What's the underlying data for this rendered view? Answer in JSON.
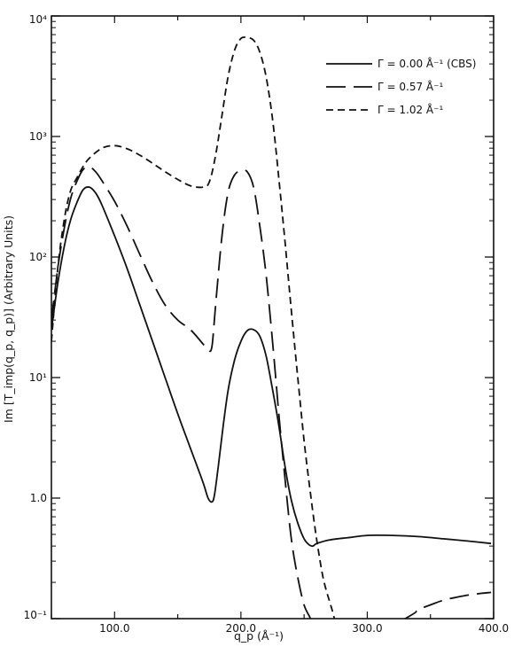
{
  "chart_data": {
    "type": "line",
    "xlabel": "q_p (Å⁻¹)",
    "ylabel": "Im [T_imp(q_p, q_p)]  (Arbitrary Units)",
    "xlim": [
      50,
      400
    ],
    "ylim": [
      0.1,
      10000
    ],
    "y_scale": "log",
    "grid": false,
    "legend_position": "top-right",
    "x_ticks": [
      100,
      200,
      300,
      400
    ],
    "x_tick_labels": [
      "100.0",
      "200.0",
      "300.0",
      "400.0"
    ],
    "y_ticks": [
      0.1,
      1,
      10,
      100,
      1000,
      10000
    ],
    "y_tick_labels": [
      "10⁻¹",
      "1.0",
      "10¹",
      "10²",
      "10³",
      "10⁴"
    ],
    "series": [
      {
        "name": "Γ = 0.00 Å⁻¹ (CBS)",
        "style": "solid",
        "x": [
          50,
          55,
          60,
          65,
          70,
          75,
          80,
          85,
          90,
          100,
          110,
          120,
          130,
          140,
          150,
          160,
          170,
          174,
          177,
          179,
          182,
          186,
          190,
          195,
          200,
          205,
          210,
          215,
          220,
          225,
          230,
          235,
          240,
          245,
          250,
          254,
          257,
          260,
          270,
          285,
          300,
          320,
          340,
          360,
          380,
          398
        ],
        "y": [
          25,
          60,
          120,
          200,
          280,
          360,
          380,
          340,
          270,
          150,
          80,
          40,
          20,
          10,
          5,
          2.6,
          1.35,
          1.0,
          0.93,
          1.05,
          1.8,
          4,
          8,
          14,
          20,
          24.5,
          25,
          22,
          15,
          8,
          4,
          1.8,
          0.95,
          0.62,
          0.46,
          0.41,
          0.4,
          0.42,
          0.45,
          0.47,
          0.49,
          0.49,
          0.48,
          0.46,
          0.44,
          0.42
        ]
      },
      {
        "name": "Γ = 0.57 Å⁻¹",
        "style": "long-dash",
        "x": [
          50,
          55,
          60,
          65,
          70,
          75,
          80,
          85,
          90,
          100,
          110,
          120,
          130,
          140,
          150,
          160,
          170,
          174,
          177,
          180,
          185,
          190,
          195,
          200,
          205,
          210,
          215,
          220,
          225,
          230,
          235,
          240,
          245,
          250,
          255,
          257,
          260,
          330,
          340,
          350,
          360,
          370,
          380,
          390,
          398
        ],
        "y": [
          30,
          80,
          170,
          300,
          420,
          530,
          560,
          510,
          430,
          290,
          180,
          105,
          62,
          40,
          30,
          25,
          19,
          17,
          18,
          40,
          150,
          350,
          480,
          520,
          510,
          380,
          180,
          70,
          20,
          5,
          1.4,
          0.45,
          0.22,
          0.13,
          0.1,
          0.08,
          0.04,
          0.1,
          0.118,
          0.13,
          0.142,
          0.15,
          0.157,
          0.162,
          0.165
        ]
      },
      {
        "name": "Γ = 1.02 Å⁻¹",
        "style": "short-dash",
        "x": [
          50,
          55,
          60,
          65,
          70,
          75,
          80,
          90,
          100,
          110,
          120,
          130,
          140,
          150,
          160,
          170,
          175,
          180,
          185,
          190,
          195,
          200,
          205,
          210,
          215,
          220,
          225,
          230,
          235,
          240,
          245,
          250,
          255,
          260,
          265,
          270,
          272,
          275,
          277
        ],
        "y": [
          20,
          80,
          200,
          350,
          450,
          560,
          660,
          800,
          840,
          790,
          700,
          600,
          510,
          440,
          390,
          380,
          420,
          700,
          1500,
          3200,
          5200,
          6500,
          6600,
          6300,
          5000,
          3100,
          1400,
          450,
          130,
          35,
          10,
          3,
          1.1,
          0.45,
          0.22,
          0.14,
          0.12,
          0.09,
          0.07
        ]
      }
    ]
  }
}
